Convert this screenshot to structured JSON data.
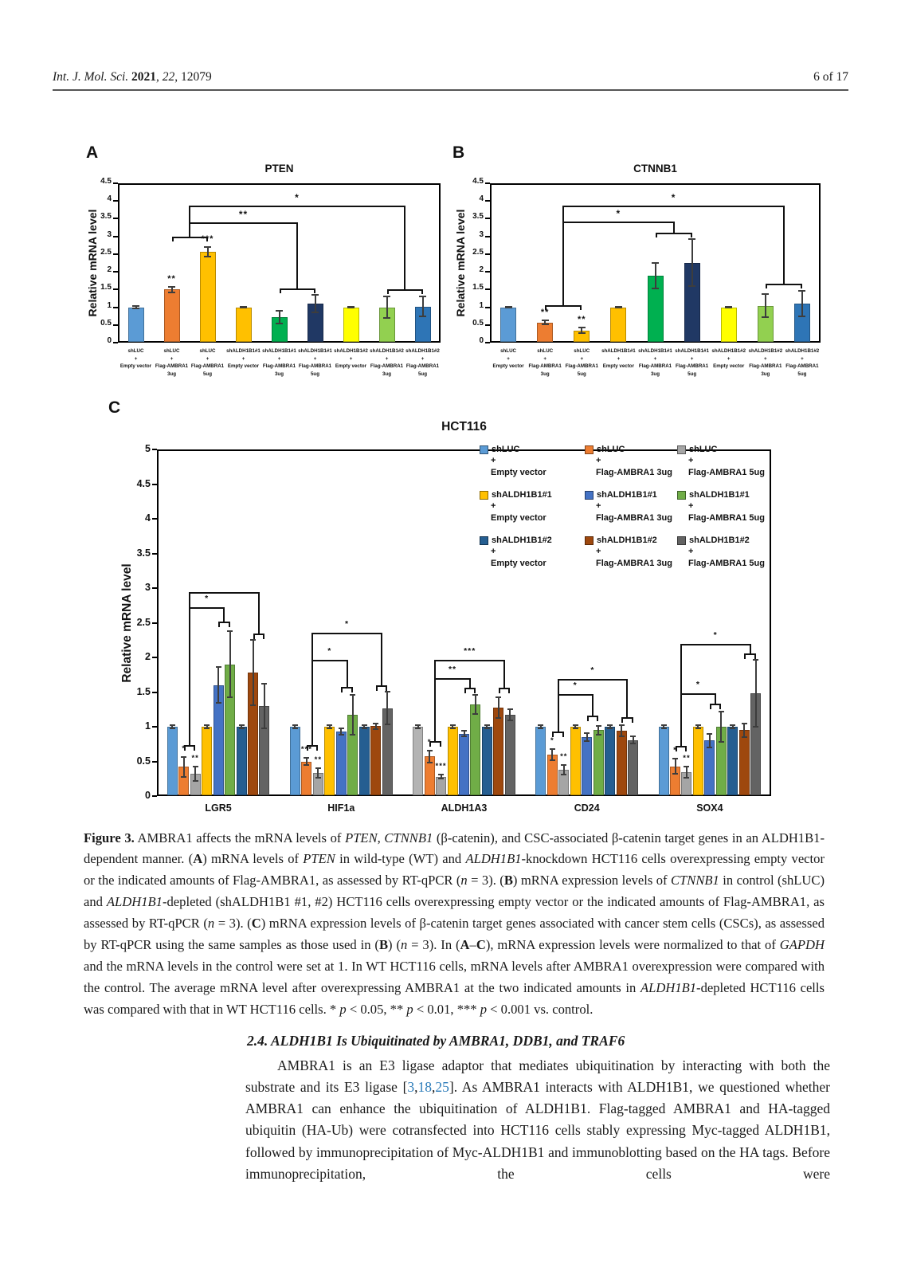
{
  "colors": {
    "citation_link": "#2b7bb9",
    "axis": "#000000",
    "text": "#1a1a1a"
  },
  "header": {
    "journal_segments": [
      {
        "t": "Int. J. Mol. Sci. ",
        "i": true
      },
      {
        "t": "2021",
        "b": true
      },
      {
        "t": ", "
      },
      {
        "t": "22",
        "i": true
      },
      {
        "t": ", 12079"
      }
    ],
    "page_info": "6 of 17"
  },
  "figure": {
    "panel_letters": [
      "A",
      "B",
      "C"
    ]
  },
  "chart_data": [
    {
      "id": "A",
      "type": "bar",
      "title": "PTEN",
      "ylabel": "Relative mRNA level",
      "ymax": 4.5,
      "ystep": 0.5,
      "grid": false,
      "bars": [
        {
          "label": [
            "shLUC",
            "+",
            "Empty vector"
          ],
          "value": 1.0,
          "err": 0.03,
          "sig": "",
          "color": "#5B9BD5"
        },
        {
          "label": [
            "shLUC",
            "+",
            "Flag-AMBRA1",
            "3ug"
          ],
          "value": 1.5,
          "err": 0.08,
          "sig": "**",
          "color": "#ED7D31"
        },
        {
          "label": [
            "shLUC",
            "+",
            "Flag-AMBRA1",
            "5ug"
          ],
          "value": 2.57,
          "err": 0.13,
          "sig": "***",
          "color": "#FFC000"
        },
        {
          "label": [
            "shALDH1B1#1",
            "+",
            "Empty vector"
          ],
          "value": 1.0,
          "err": 0.02,
          "sig": "",
          "color": "#FFC000"
        },
        {
          "label": [
            "shALDH1B1#1",
            "+",
            "Flag-AMBRA1",
            "3ug"
          ],
          "value": 0.72,
          "err": 0.18,
          "sig": "",
          "color": "#00B050"
        },
        {
          "label": [
            "shALDH1B1#1",
            "+",
            "Flag-AMBRA1",
            "5ug"
          ],
          "value": 1.1,
          "err": 0.25,
          "sig": "",
          "color": "#203864"
        },
        {
          "label": [
            "shALDH1B1#2",
            "+",
            "Empty vector"
          ],
          "value": 1.0,
          "err": 0.01,
          "sig": "",
          "color": "#FFFF00"
        },
        {
          "label": [
            "shALDH1B1#2",
            "+",
            "Flag-AMBRA1",
            "3ug"
          ],
          "value": 1.0,
          "err": 0.3,
          "sig": "",
          "color": "#92D050"
        },
        {
          "label": [
            "shALDH1B1#2",
            "+",
            "Flag-AMBRA1",
            "5ug"
          ],
          "value": 1.02,
          "err": 0.28,
          "sig": "",
          "color": "#2E75B6"
        }
      ],
      "brackets": [
        {
          "ends": [
            {
              "bars": [
                1,
                2
              ],
              "y": 3.0
            },
            {
              "bars": [
                4,
                5
              ],
              "y": 1.54
            }
          ],
          "line_y": 3.4,
          "label": "**"
        },
        {
          "ends": [
            {
              "bars": [
                1,
                2
              ],
              "y": 3.0
            },
            {
              "bars": [
                7,
                8
              ],
              "y": 1.51
            }
          ],
          "line_y": 3.88,
          "label": "*"
        }
      ]
    },
    {
      "id": "B",
      "type": "bar",
      "title": "CTNNB1",
      "ylabel": "Relative mRNA level",
      "ymax": 4.5,
      "ystep": 0.5,
      "grid": false,
      "bars": [
        {
          "label": [
            "shLUC",
            "+",
            "Empty vector"
          ],
          "value": 1.0,
          "err": 0.02,
          "sig": "",
          "color": "#5B9BD5"
        },
        {
          "label": [
            "shLUC",
            "+",
            "Flag-AMBRA1",
            "3ug"
          ],
          "value": 0.57,
          "err": 0.06,
          "sig": "**",
          "color": "#ED7D31"
        },
        {
          "label": [
            "shLUC",
            "+",
            "Flag-AMBRA1",
            "5ug"
          ],
          "value": 0.34,
          "err": 0.08,
          "sig": "**",
          "color": "#FFC000"
        },
        {
          "label": [
            "shALDH1B1#1",
            "+",
            "Empty vector"
          ],
          "value": 1.0,
          "err": 0.02,
          "sig": "",
          "color": "#FFC000"
        },
        {
          "label": [
            "shALDH1B1#1",
            "+",
            "Flag-AMBRA1",
            "3ug"
          ],
          "value": 1.89,
          "err": 0.37,
          "sig": "",
          "color": "#00B050"
        },
        {
          "label": [
            "shALDH1B1#1",
            "+",
            "Flag-AMBRA1",
            "5ug"
          ],
          "value": 2.26,
          "err": 0.66,
          "sig": "",
          "color": "#203864"
        },
        {
          "label": [
            "shALDH1B1#2",
            "+",
            "Empty vector"
          ],
          "value": 1.0,
          "err": 0.02,
          "sig": "",
          "color": "#FFFF00"
        },
        {
          "label": [
            "shALDH1B1#2",
            "+",
            "Flag-AMBRA1",
            "3ug"
          ],
          "value": 1.04,
          "err": 0.33,
          "sig": "",
          "color": "#92D050"
        },
        {
          "label": [
            "shALDH1B1#2",
            "+",
            "Flag-AMBRA1",
            "5ug"
          ],
          "value": 1.1,
          "err": 0.36,
          "sig": "",
          "color": "#2E75B6"
        }
      ],
      "brackets": [
        {
          "ends": [
            {
              "bars": [
                1,
                2
              ],
              "y": 1.05
            },
            {
              "bars": [
                4,
                5
              ],
              "y": 3.1
            }
          ],
          "line_y": 3.42,
          "label": "*"
        },
        {
          "ends": [
            {
              "bars": [
                1,
                2
              ],
              "y": 1.05
            },
            {
              "bars": [
                7,
                8
              ],
              "y": 1.66
            }
          ],
          "line_y": 3.87,
          "label": "*"
        }
      ]
    },
    {
      "id": "C",
      "type": "bar",
      "title": "HCT116",
      "ylabel": "Relative mRNA level",
      "ymax": 5,
      "ystep": 0.5,
      "grid": false,
      "legend_position": "top-right",
      "categories": [
        "LGR5",
        "HIF1a",
        "ALDH1A3",
        "CD24",
        "SOX4"
      ],
      "series": [
        {
          "name": [
            "shLUC",
            "+",
            "Empty vector"
          ],
          "color": "#5B9BD5",
          "values": [
            1.0,
            1.0,
            1.0,
            1.0,
            1.0
          ],
          "errors": [
            0.02,
            0.02,
            0.02,
            0.02,
            0.02
          ],
          "sig": [
            "",
            "",
            "",
            "",
            ""
          ]
        },
        {
          "name": [
            "shLUC",
            "+",
            "Flag-AMBRA1 3ug"
          ],
          "color": "#ED7D31",
          "values": [
            0.42,
            0.5,
            0.57,
            0.6,
            0.43
          ],
          "errors": [
            0.14,
            0.05,
            0.09,
            0.08,
            0.11
          ],
          "sig": [
            "*",
            "***",
            "*",
            "*",
            "*"
          ]
        },
        {
          "name": [
            "shLUC",
            "+",
            "Flag-AMBRA1 5ug"
          ],
          "color": "#A5A5A5",
          "values": [
            0.32,
            0.33,
            0.28,
            0.38,
            0.35
          ],
          "errors": [
            0.1,
            0.07,
            0.03,
            0.07,
            0.08
          ],
          "sig": [
            "**",
            "**",
            "***",
            "**",
            "**"
          ]
        },
        {
          "name": [
            "shALDH1B1#1",
            "+",
            "Empty vector"
          ],
          "color": "#FFC000",
          "values": [
            1.0,
            1.0,
            1.0,
            1.0,
            1.0
          ],
          "errors": [
            0.02,
            0.02,
            0.02,
            0.02,
            0.02
          ],
          "sig": [
            "",
            "",
            "",
            "",
            ""
          ]
        },
        {
          "name": [
            "shALDH1B1#1",
            "+",
            "Flag-AMBRA1 3ug"
          ],
          "color": "#4472C4",
          "values": [
            1.6,
            0.93,
            0.9,
            0.85,
            0.8
          ],
          "errors": [
            0.26,
            0.05,
            0.04,
            0.06,
            0.1
          ],
          "sig": [
            "",
            "",
            "",
            "",
            ""
          ]
        },
        {
          "name": [
            "shALDH1B1#1",
            "+",
            "Flag-AMBRA1 5ug"
          ],
          "color": "#70AD47",
          "values": [
            1.9,
            1.17,
            1.32,
            0.95,
            1.0
          ],
          "errors": [
            0.48,
            0.29,
            0.14,
            0.06,
            0.22
          ],
          "sig": [
            "",
            "",
            "",
            "",
            ""
          ]
        },
        {
          "name": [
            "shALDH1B1#2",
            "+",
            "Empty vector"
          ],
          "color": "#255E91",
          "values": [
            1.0,
            1.0,
            1.0,
            1.0,
            1.0
          ],
          "errors": [
            0.02,
            0.02,
            0.02,
            0.02,
            0.02
          ],
          "sig": [
            "",
            "",
            "",
            "",
            ""
          ]
        },
        {
          "name": [
            "shALDH1B1#2",
            "+",
            "Flag-AMBRA1 3ug"
          ],
          "color": "#9E480E",
          "values": [
            1.78,
            1.01,
            1.28,
            0.94,
            0.95
          ],
          "errors": [
            0.47,
            0.04,
            0.15,
            0.08,
            0.1
          ],
          "sig": [
            "",
            "",
            "",
            "",
            ""
          ]
        },
        {
          "name": [
            "shALDH1B1#2",
            "+",
            "Flag-AMBRA1 5ug"
          ],
          "color": "#636363",
          "values": [
            1.3,
            1.27,
            1.17,
            0.81,
            1.48
          ],
          "errors": [
            0.32,
            0.24,
            0.08,
            0.05,
            0.48
          ],
          "sig": [
            "",
            "",
            "",
            "",
            ""
          ]
        }
      ],
      "color_overrides": [
        {
          "category": 2,
          "series": 0,
          "color": "#B3B3B3"
        }
      ],
      "brackets": [
        {
          "category": 0,
          "ends": [
            {
              "bars": [
                1,
                2
              ],
              "y": 0.74
            },
            {
              "bars": [
                4,
                5
              ],
              "y": 2.52
            }
          ],
          "line_y": 2.72,
          "label": "*"
        },
        {
          "category": 0,
          "ends": [
            {
              "bars": [
                1,
                2
              ],
              "y": 0.74
            },
            {
              "bars": [
                7,
                8
              ],
              "y": 2.34
            }
          ],
          "line_y": 2.94,
          "label": ""
        },
        {
          "category": 1,
          "ends": [
            {
              "bars": [
                1,
                2
              ],
              "y": 0.74
            },
            {
              "bars": [
                4,
                5
              ],
              "y": 1.58
            }
          ],
          "line_y": 1.97,
          "label": "*"
        },
        {
          "category": 1,
          "ends": [
            {
              "bars": [
                1,
                2
              ],
              "y": 0.74
            },
            {
              "bars": [
                7,
                8
              ],
              "y": 1.6
            }
          ],
          "line_y": 2.36,
          "label": "*"
        },
        {
          "category": 2,
          "ends": [
            {
              "bars": [
                1,
                2
              ],
              "y": 0.79
            },
            {
              "bars": [
                4,
                5
              ],
              "y": 1.56
            }
          ],
          "line_y": 1.7,
          "label": "**"
        },
        {
          "category": 2,
          "ends": [
            {
              "bars": [
                1,
                2
              ],
              "y": 0.79
            },
            {
              "bars": [
                7,
                8
              ],
              "y": 1.56
            }
          ],
          "line_y": 1.97,
          "label": "***"
        },
        {
          "category": 3,
          "ends": [
            {
              "bars": [
                1,
                2
              ],
              "y": 0.93
            },
            {
              "bars": [
                4,
                5
              ],
              "y": 1.16
            }
          ],
          "line_y": 1.47,
          "label": "*"
        },
        {
          "category": 3,
          "ends": [
            {
              "bars": [
                1,
                2
              ],
              "y": 0.93
            },
            {
              "bars": [
                7,
                8
              ],
              "y": 1.14
            }
          ],
          "line_y": 1.69,
          "label": "*"
        },
        {
          "category": 4,
          "ends": [
            {
              "bars": [
                1,
                2
              ],
              "y": 0.72
            },
            {
              "bars": [
                4,
                5
              ],
              "y": 1.33
            }
          ],
          "line_y": 1.48,
          "label": "*"
        },
        {
          "category": 4,
          "ends": [
            {
              "bars": [
                1,
                2
              ],
              "y": 0.72
            },
            {
              "bars": [
                7,
                8
              ],
              "y": 2.06
            }
          ],
          "line_y": 2.19,
          "label": "*"
        }
      ]
    }
  ],
  "caption": {
    "segments": [
      {
        "t": "Figure 3.",
        "b": true
      },
      {
        "t": " AMBRA1 affects the mRNA levels of "
      },
      {
        "t": "PTEN",
        "i": true
      },
      {
        "t": ", "
      },
      {
        "t": "CTNNB1",
        "i": true
      },
      {
        "t": " (β-catenin), and CSC-associated β-catenin target genes in an ALDH1B1-dependent manner. ("
      },
      {
        "t": "A",
        "b": true
      },
      {
        "t": ") mRNA levels of "
      },
      {
        "t": "PTEN",
        "i": true
      },
      {
        "t": " in wild-type (WT) and "
      },
      {
        "t": "ALDH1B1",
        "i": true
      },
      {
        "t": "-knockdown HCT116 cells overexpressing empty vector or the indicated amounts of Flag-AMBRA1, as assessed by RT-qPCR ("
      },
      {
        "t": "n",
        "i": true
      },
      {
        "t": " = 3). ("
      },
      {
        "t": "B",
        "b": true
      },
      {
        "t": ") mRNA expression levels of "
      },
      {
        "t": "CTNNB1",
        "i": true
      },
      {
        "t": " in control (shLUC) and "
      },
      {
        "t": "ALDH1B1",
        "i": true
      },
      {
        "t": "-depleted (shALDH1B1 #1, #2) HCT116 cells overexpressing empty vector or the indicated amounts of Flag-AMBRA1, as assessed by RT-qPCR ("
      },
      {
        "t": "n",
        "i": true
      },
      {
        "t": " = 3). ("
      },
      {
        "t": "C",
        "b": true
      },
      {
        "t": ") mRNA expression levels of β-catenin target genes associated with cancer stem cells (CSCs), as assessed by RT-qPCR using the same samples as those used in ("
      },
      {
        "t": "B",
        "b": true
      },
      {
        "t": ") ("
      },
      {
        "t": "n",
        "i": true
      },
      {
        "t": " = 3). In ("
      },
      {
        "t": "A",
        "b": true
      },
      {
        "t": "–"
      },
      {
        "t": "C",
        "b": true
      },
      {
        "t": "), mRNA expression levels were normalized to that of "
      },
      {
        "t": "GAPDH",
        "i": true
      },
      {
        "t": " and the mRNA levels in the control were set at 1. In WT HCT116 cells, mRNA levels after AMBRA1 overexpression were compared with the control. The average mRNA level after overexpressing AMBRA1 at the two indicated amounts in "
      },
      {
        "t": "ALDH1B1",
        "i": true
      },
      {
        "t": "-depleted HCT116 cells was compared with that in WT HCT116 cells. * "
      },
      {
        "t": "p",
        "i": true
      },
      {
        "t": " < 0.05, ** "
      },
      {
        "t": "p",
        "i": true
      },
      {
        "t": " < 0.01, *** "
      },
      {
        "t": "p",
        "i": true
      },
      {
        "t": " < 0.001 vs. control."
      }
    ]
  },
  "section": {
    "heading_segments": [
      {
        "t": "2.4. ALDH1B1 Is Ubiquitinated by AMBRA1, DDB1, and TRAF6",
        "i": true
      }
    ],
    "paragraph_segments": [
      {
        "t": "AMBRA1 is an E3 ligase adaptor that mediates ubiquitination by interacting with both the substrate and its E3 ligase ["
      },
      {
        "t": "3",
        "link": true
      },
      {
        "t": ","
      },
      {
        "t": "18",
        "link": true
      },
      {
        "t": ","
      },
      {
        "t": "25",
        "link": true
      },
      {
        "t": "]. As AMBRA1 interacts with ALDH1B1, we questioned whether AMBRA1 can enhance the ubiquitination of ALDH1B1. Flag-tagged AMBRA1 and HA-tagged ubiquitin (HA-Ub) were cotransfected into HCT116 cells stably expressing Myc-tagged ALDH1B1, followed by immunoprecipitation of Myc-ALDH1B1 and immunoblotting based on the HA tags. Before immunoprecipitation, the cells were"
      }
    ]
  }
}
